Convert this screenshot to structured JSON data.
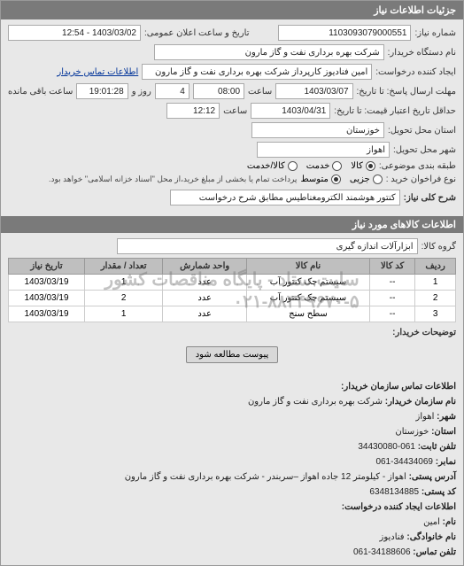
{
  "header": {
    "title": "جزئیات اطلاعات نیاز"
  },
  "form": {
    "need_no_label": "شماره نیاز:",
    "need_no": "1103093079000551",
    "announce_label": "تاریخ و ساعت اعلان عمومی:",
    "announce": "1403/03/02 - 12:54",
    "buyer_org_label": "نام دستگاه خریدار:",
    "buyer_org": "شرکت بهره برداری نفت و گاز مارون",
    "requester_label": "ایجاد کننده درخواست:",
    "requester": "امین فنادیوز کارپرداز شرکت بهره برداری نفت و گاز مارون",
    "contact_link": "اطلاعات تماس خریدار",
    "reply_deadline_label": "مهلت ارسال پاسخ: تا تاریخ:",
    "reply_date": "1403/03/07",
    "time_label": "ساعت",
    "reply_time": "08:00",
    "days_remain": "4",
    "days_label": "روز و",
    "hours_remain": "19:01:28",
    "hours_label": "ساعت باقی مانده",
    "validity_label": "حداقل تاریخ اعتبار قیمت: تا تاریخ:",
    "validity_date": "1403/04/31",
    "validity_time": "12:12",
    "province_label": "استان محل تحویل:",
    "province": "خوزستان",
    "city_label": "شهر محل تحویل:",
    "city": "اهواز",
    "pack_label": "طبقه بندی موضوعی:",
    "pack_options": {
      "goods": "کالا",
      "service": "خدمت",
      "both": "کالا/خدمت"
    },
    "purchase_label": "نوع فراخوان خرید :",
    "purchase_options": {
      "partial": "جزیی",
      "medium": "متوسط"
    },
    "purchase_note": "پرداخت تمام یا بخشی از مبلغ خرید،از محل \"اسناد خزانه اسلامی\" خواهد بود.",
    "desc_label": "شرح کلی نیاز:",
    "desc": "کنتور هوشمند الکترومغناطیس مطابق شرح درخواست"
  },
  "goods": {
    "section_title": "اطلاعات کالاهای مورد نیاز",
    "group_label": "گروه کالا:",
    "group_value": "ابزارآلات اندازه گیری",
    "columns": [
      "ردیف",
      "کد کالا",
      "نام کالا",
      "واحد شمارش",
      "تعداد / مقدار",
      "تاریخ نیاز"
    ],
    "rows": [
      [
        "1",
        "--",
        "سیستم چک کنتور آب",
        "عدد",
        "1",
        "1403/03/19"
      ],
      [
        "2",
        "--",
        "سیستم چک کنتور آب",
        "عدد",
        "2",
        "1403/03/19"
      ],
      [
        "3",
        "--",
        "سطح سنج",
        "عدد",
        "1",
        "1403/03/19"
      ]
    ],
    "watermark_line1": "سایت ستاد - پایگاه مناقصات کشور",
    "watermark_line2": "۰۲۱-۸۸۳۴۹۶۷۰-۵"
  },
  "attach": {
    "label": "توضیحات خریدار:",
    "button": "پیوست مطالعه شود"
  },
  "footer": {
    "title": "اطلاعات تماس سازمان خریدار:",
    "org_label": "نام سازمان خریدار:",
    "org": "شرکت بهره برداری نفت و گاز مارون",
    "city_label": "شهر:",
    "city": "اهواز",
    "province_label": "استان:",
    "province": "خوزستان",
    "phone_label": "تلفن ثابت:",
    "phone": "061-34430080",
    "fax_label": "نمابر:",
    "fax": "34434069-061",
    "address_label": "آدرس پستی:",
    "address": "اهواز - کیلومتر 12 جاده اهواز –سربندر - شرکت بهره برداری نفت و گاز مارون",
    "postcode_label": "کد پستی:",
    "postcode": "6348134885",
    "creator_title": "اطلاعات ایجاد کننده درخواست:",
    "name_label": "نام:",
    "name": "امین",
    "family_label": "نام خانوادگی:",
    "family": "فنادیوز",
    "tel_label": "تلفن تماس:",
    "tel": "34188606-061"
  }
}
